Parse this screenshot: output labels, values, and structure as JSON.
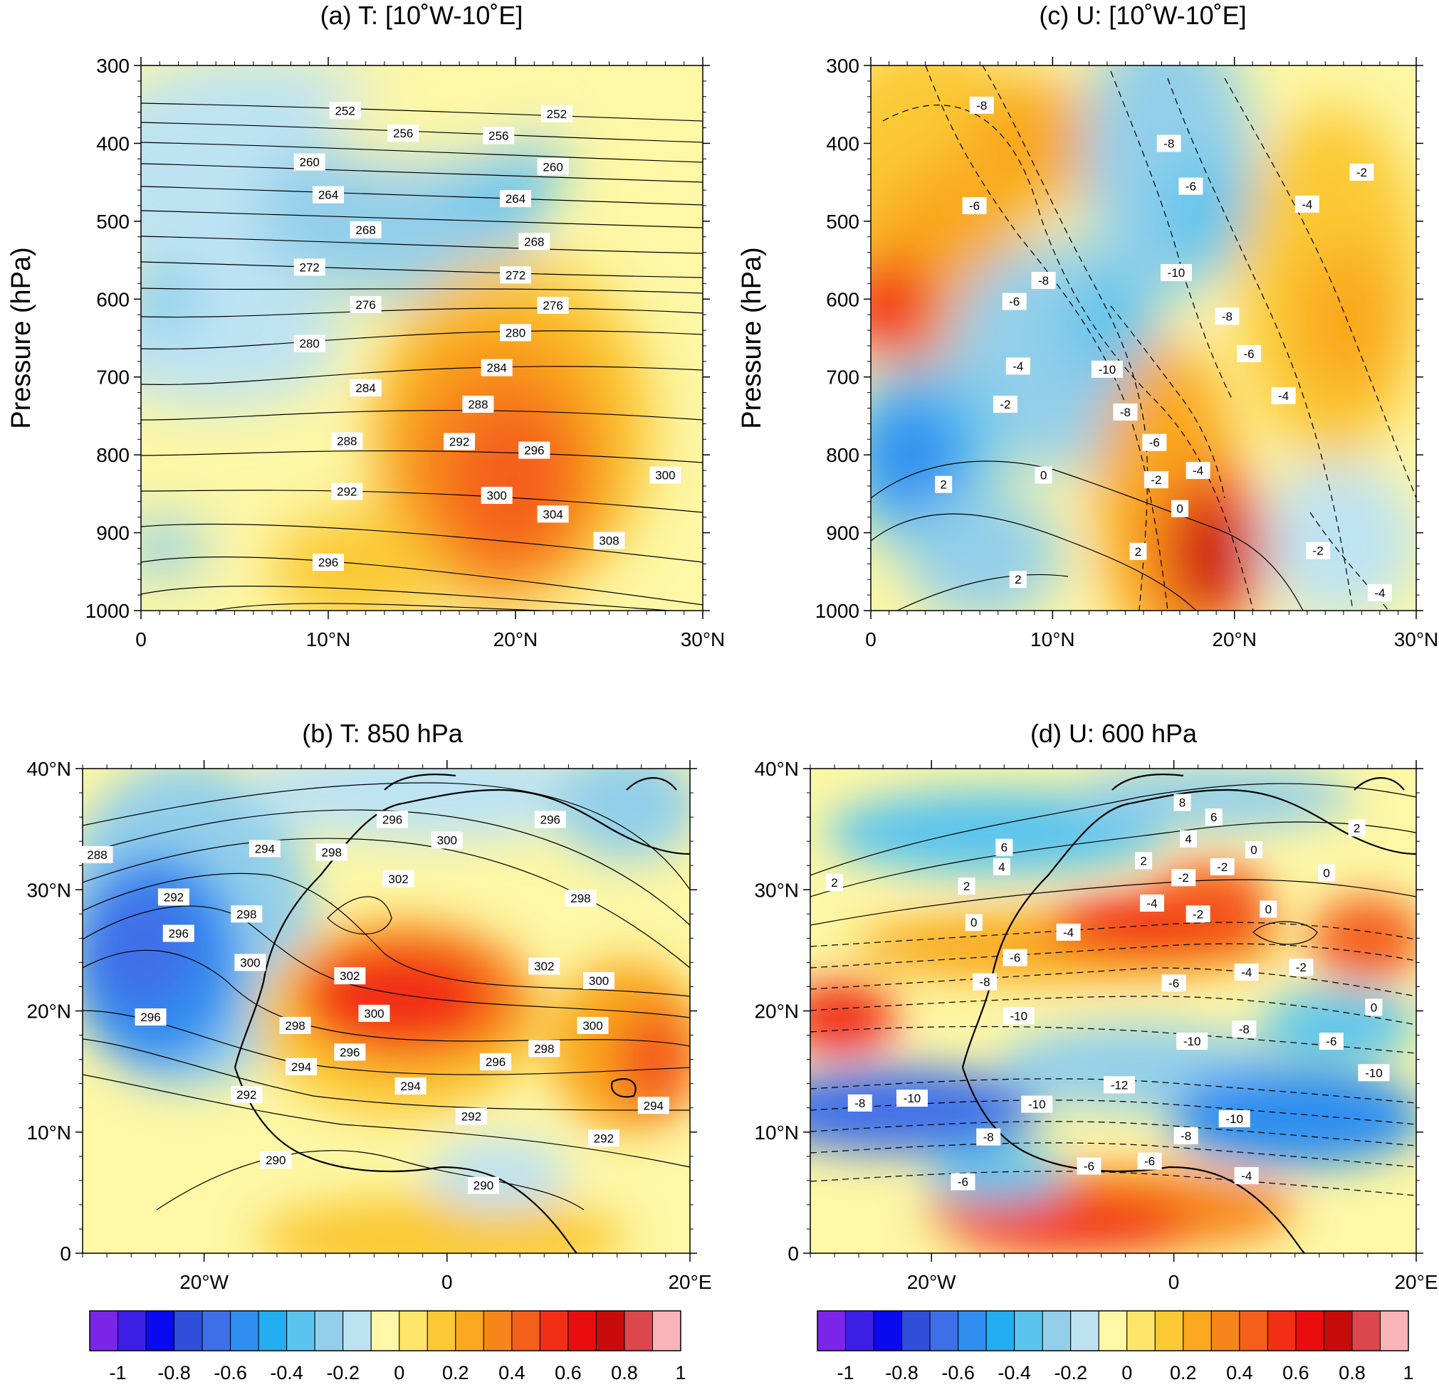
{
  "palette": [
    "#7b25e8",
    "#3d20e6",
    "#0a0af0",
    "#2d4fd9",
    "#3f6fe8",
    "#2f8ef0",
    "#22aef0",
    "#5bc4ee",
    "#93cfea",
    "#bde3f3",
    "#fdf7a6",
    "#fde66a",
    "#fbc934",
    "#f9a81f",
    "#f7861a",
    "#f4601a",
    "#f22f16",
    "#ea0d0d",
    "#c70b0b",
    "#dc474d",
    "#f8b4b8"
  ],
  "colorbars": [
    {
      "id": "left",
      "labels": [
        "-1",
        "-0.8",
        "-0.6",
        "-0.4",
        "-0.2",
        "0",
        "0.2",
        "0.4",
        "0.6",
        "0.8",
        "1"
      ]
    },
    {
      "id": "right",
      "labels": [
        "-1",
        "-0.8",
        "-0.6",
        "-0.4",
        "-0.2",
        "0",
        "0.2",
        "0.4",
        "0.6",
        "0.8",
        "1"
      ]
    }
  ],
  "chart_data": [
    {
      "id": "a",
      "type": "heatmap",
      "title": "(a) T: [10˚W-10˚E]",
      "ylabel": "Pressure (hPa)",
      "xlabel": "",
      "xlim": [
        0,
        30
      ],
      "ylim": [
        1000,
        300
      ],
      "yticks": [
        "300",
        "400",
        "500",
        "600",
        "700",
        "800",
        "900",
        "1000"
      ],
      "xticks": [
        "0",
        "10°N",
        "20°N",
        "30°N"
      ],
      "contour_labels": [
        {
          "t": "252",
          "x": 10.9,
          "p": 358
        },
        {
          "t": "252",
          "x": 22.2,
          "p": 362
        },
        {
          "t": "256",
          "x": 14.0,
          "p": 387
        },
        {
          "t": "256",
          "x": 19.1,
          "p": 390
        },
        {
          "t": "260",
          "x": 9.0,
          "p": 424
        },
        {
          "t": "260",
          "x": 22.0,
          "p": 430
        },
        {
          "t": "264",
          "x": 10.0,
          "p": 466
        },
        {
          "t": "264",
          "x": 20.0,
          "p": 471
        },
        {
          "t": "268",
          "x": 12.0,
          "p": 511
        },
        {
          "t": "268",
          "x": 21.0,
          "p": 526
        },
        {
          "t": "272",
          "x": 9.0,
          "p": 559
        },
        {
          "t": "272",
          "x": 20.0,
          "p": 569
        },
        {
          "t": "276",
          "x": 12.0,
          "p": 607
        },
        {
          "t": "276",
          "x": 22.0,
          "p": 608
        },
        {
          "t": "280",
          "x": 9.0,
          "p": 657
        },
        {
          "t": "280",
          "x": 20.0,
          "p": 643
        },
        {
          "t": "284",
          "x": 12.0,
          "p": 714
        },
        {
          "t": "284",
          "x": 19.0,
          "p": 688
        },
        {
          "t": "288",
          "x": 11.0,
          "p": 782
        },
        {
          "t": "288",
          "x": 18.0,
          "p": 735
        },
        {
          "t": "292",
          "x": 11.0,
          "p": 847
        },
        {
          "t": "292",
          "x": 17.0,
          "p": 783
        },
        {
          "t": "296",
          "x": 10.0,
          "p": 938
        },
        {
          "t": "296",
          "x": 21.0,
          "p": 794
        },
        {
          "t": "300",
          "x": 19.0,
          "p": 852
        },
        {
          "t": "300",
          "x": 28.0,
          "p": 826
        },
        {
          "t": "304",
          "x": 22.0,
          "p": 876
        },
        {
          "t": "308",
          "x": 25.0,
          "p": 910
        }
      ]
    },
    {
      "id": "c",
      "type": "heatmap",
      "title": "(c) U: [10˚W-10˚E]",
      "ylabel": "Pressure (hPa)",
      "xlabel": "",
      "xlim": [
        0,
        30
      ],
      "ylim": [
        1000,
        300
      ],
      "yticks": [
        "300",
        "400",
        "500",
        "600",
        "700",
        "800",
        "900",
        "1000"
      ],
      "xticks": [
        "0",
        "10°N",
        "20°N",
        "30°N"
      ],
      "contour_labels": [
        {
          "t": "-8",
          "x": 6.1,
          "p": 351
        },
        {
          "t": "-8",
          "x": 16.4,
          "p": 400
        },
        {
          "t": "-6",
          "x": 5.7,
          "p": 480
        },
        {
          "t": "-6",
          "x": 17.6,
          "p": 455
        },
        {
          "t": "-4",
          "x": 24.0,
          "p": 478
        },
        {
          "t": "-2",
          "x": 27.0,
          "p": 437
        },
        {
          "t": "-10",
          "x": 16.8,
          "p": 566
        },
        {
          "t": "-8",
          "x": 9.5,
          "p": 576
        },
        {
          "t": "-6",
          "x": 7.9,
          "p": 603
        },
        {
          "t": "-8",
          "x": 19.6,
          "p": 622
        },
        {
          "t": "-6",
          "x": 20.8,
          "p": 670
        },
        {
          "t": "-4",
          "x": 8.1,
          "p": 686
        },
        {
          "t": "-2",
          "x": 7.4,
          "p": 735
        },
        {
          "t": "-10",
          "x": 13.0,
          "p": 690
        },
        {
          "t": "-8",
          "x": 14.0,
          "p": 745
        },
        {
          "t": "-4",
          "x": 22.7,
          "p": 724
        },
        {
          "t": "-6",
          "x": 15.6,
          "p": 784
        },
        {
          "t": "-4",
          "x": 18.0,
          "p": 820
        },
        {
          "t": "-2",
          "x": 15.7,
          "p": 832
        },
        {
          "t": "0",
          "x": 9.5,
          "p": 826
        },
        {
          "t": "2",
          "x": 4.0,
          "p": 838
        },
        {
          "t": "0",
          "x": 17.0,
          "p": 869
        },
        {
          "t": "2",
          "x": 14.7,
          "p": 924
        },
        {
          "t": "-2",
          "x": 24.6,
          "p": 923
        },
        {
          "t": "2",
          "x": 8.1,
          "p": 960
        },
        {
          "t": "-4",
          "x": 28.0,
          "p": 977
        }
      ]
    },
    {
      "id": "b",
      "type": "heatmap",
      "title": "(b) T: 850 hPa",
      "xlabel": "",
      "ylabel": "",
      "xlim": [
        -30,
        20
      ],
      "ylim": [
        0,
        40
      ],
      "yticks": [
        "0",
        "10°N",
        "20°N",
        "30°N",
        "40°N"
      ],
      "xticks": [
        "20°W",
        "0",
        "20°E"
      ],
      "contour_labels": [
        {
          "t": "288",
          "lon": -28.8,
          "lat": 32.9
        },
        {
          "t": "292",
          "lon": -22.5,
          "lat": 29.4
        },
        {
          "t": "294",
          "lon": -15.0,
          "lat": 33.4
        },
        {
          "t": "296",
          "lon": -4.5,
          "lat": 35.8
        },
        {
          "t": "296",
          "lon": 8.5,
          "lat": 35.8
        },
        {
          "t": "298",
          "lon": -9.5,
          "lat": 33.1
        },
        {
          "t": "300",
          "lon": 0.0,
          "lat": 34.1
        },
        {
          "t": "302",
          "lon": -4.0,
          "lat": 30.9
        },
        {
          "t": "298",
          "lon": -16.5,
          "lat": 28.0
        },
        {
          "t": "298",
          "lon": 11.0,
          "lat": 29.3
        },
        {
          "t": "296",
          "lon": -22.1,
          "lat": 26.4
        },
        {
          "t": "300",
          "lon": -16.2,
          "lat": 24.0
        },
        {
          "t": "302",
          "lon": -8.0,
          "lat": 22.9
        },
        {
          "t": "302",
          "lon": 8.0,
          "lat": 23.7
        },
        {
          "t": "300",
          "lon": 12.5,
          "lat": 22.5
        },
        {
          "t": "296",
          "lon": -24.4,
          "lat": 19.5
        },
        {
          "t": "300",
          "lon": -6.0,
          "lat": 19.8
        },
        {
          "t": "300",
          "lon": 12.0,
          "lat": 18.8
        },
        {
          "t": "298",
          "lon": -12.5,
          "lat": 18.8
        },
        {
          "t": "298",
          "lon": 8.0,
          "lat": 16.9
        },
        {
          "t": "296",
          "lon": -8.0,
          "lat": 16.6
        },
        {
          "t": "296",
          "lon": 4.0,
          "lat": 15.8
        },
        {
          "t": "294",
          "lon": -12.0,
          "lat": 15.4
        },
        {
          "t": "294",
          "lon": -3.0,
          "lat": 13.8
        },
        {
          "t": "294",
          "lon": 17.0,
          "lat": 12.2
        },
        {
          "t": "292",
          "lon": -16.5,
          "lat": 13.1
        },
        {
          "t": "292",
          "lon": 2.0,
          "lat": 11.3
        },
        {
          "t": "292",
          "lon": 12.9,
          "lat": 9.5
        },
        {
          "t": "290",
          "lon": -14.1,
          "lat": 7.7
        },
        {
          "t": "290",
          "lon": 3.0,
          "lat": 5.6
        }
      ]
    },
    {
      "id": "d",
      "type": "heatmap",
      "title": "(d) U: 600 hPa",
      "xlabel": "",
      "ylabel": "",
      "xlim": [
        -30,
        20
      ],
      "ylim": [
        0,
        40
      ],
      "yticks": [
        "0",
        "10°N",
        "20°N",
        "30°N",
        "40°N"
      ],
      "xticks": [
        "20°W",
        "0",
        "20°E"
      ],
      "contour_labels": [
        {
          "t": "8",
          "lon": 0.7,
          "lat": 37.2
        },
        {
          "t": "6",
          "lon": 3.3,
          "lat": 36.0
        },
        {
          "t": "2",
          "lon": 15.1,
          "lat": 35.1
        },
        {
          "t": "6",
          "lon": -14.0,
          "lat": 33.5
        },
        {
          "t": "4",
          "lon": 1.2,
          "lat": 34.2
        },
        {
          "t": "4",
          "lon": -14.2,
          "lat": 31.9
        },
        {
          "t": "2",
          "lon": -2.5,
          "lat": 32.4
        },
        {
          "t": "0",
          "lon": 6.6,
          "lat": 33.3
        },
        {
          "t": "2",
          "lon": -28.0,
          "lat": 30.6
        },
        {
          "t": "2",
          "lon": -17.1,
          "lat": 30.3
        },
        {
          "t": "-2",
          "lon": 0.8,
          "lat": 31.0
        },
        {
          "t": "-2",
          "lon": 4.0,
          "lat": 31.9
        },
        {
          "t": "0",
          "lon": 12.6,
          "lat": 31.4
        },
        {
          "t": "0",
          "lon": -16.5,
          "lat": 27.3
        },
        {
          "t": "-4",
          "lon": -1.8,
          "lat": 28.9
        },
        {
          "t": "-2",
          "lon": 2.0,
          "lat": 28.0
        },
        {
          "t": "0",
          "lon": 7.8,
          "lat": 28.4
        },
        {
          "t": "-4",
          "lon": -8.7,
          "lat": 26.5
        },
        {
          "t": "-6",
          "lon": -13.1,
          "lat": 24.4
        },
        {
          "t": "-4",
          "lon": 6.0,
          "lat": 23.2
        },
        {
          "t": "-2",
          "lon": 10.5,
          "lat": 23.6
        },
        {
          "t": "-8",
          "lon": -15.6,
          "lat": 22.4
        },
        {
          "t": "-6",
          "lon": 0.0,
          "lat": 22.3
        },
        {
          "t": "0",
          "lon": 16.5,
          "lat": 20.3
        },
        {
          "t": "-10",
          "lon": -12.8,
          "lat": 19.6
        },
        {
          "t": "-8",
          "lon": 5.8,
          "lat": 18.5
        },
        {
          "t": "-10",
          "lon": 1.5,
          "lat": 17.5
        },
        {
          "t": "-6",
          "lon": 13.0,
          "lat": 17.5
        },
        {
          "t": "-10",
          "lon": 16.5,
          "lat": 14.9
        },
        {
          "t": "-12",
          "lon": -4.5,
          "lat": 13.9
        },
        {
          "t": "-8",
          "lon": -25.9,
          "lat": 12.4
        },
        {
          "t": "-10",
          "lon": -21.6,
          "lat": 12.8
        },
        {
          "t": "-10",
          "lon": -11.3,
          "lat": 12.3
        },
        {
          "t": "-10",
          "lon": 5.0,
          "lat": 11.1
        },
        {
          "t": "-8",
          "lon": -15.3,
          "lat": 9.6
        },
        {
          "t": "-8",
          "lon": 1.0,
          "lat": 9.7
        },
        {
          "t": "-6",
          "lon": -7.0,
          "lat": 7.2
        },
        {
          "t": "-6",
          "lon": -2.0,
          "lat": 7.6
        },
        {
          "t": "-4",
          "lon": 6.0,
          "lat": 6.4
        },
        {
          "t": "-6",
          "lon": -17.4,
          "lat": 5.9
        }
      ]
    }
  ]
}
